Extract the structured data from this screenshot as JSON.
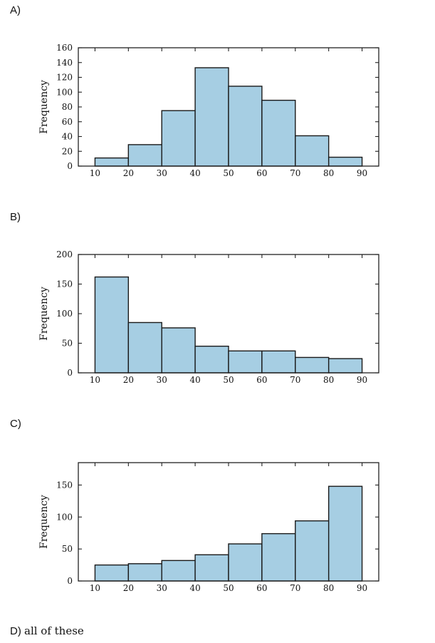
{
  "options": [
    {
      "label": "A)"
    },
    {
      "label": "B)"
    },
    {
      "label": "C)"
    },
    {
      "label": "D)",
      "text": "all of these"
    }
  ],
  "chart_data": [
    {
      "type": "bar",
      "categories": [
        "10-20",
        "20-30",
        "30-40",
        "40-50",
        "50-60",
        "60-70",
        "70-80",
        "80-90"
      ],
      "bin_edges": [
        10,
        20,
        30,
        40,
        50,
        60,
        70,
        80,
        90
      ],
      "values": [
        11,
        29,
        75,
        133,
        108,
        89,
        41,
        12
      ],
      "ylabel": "Frequency",
      "xlabel": "",
      "xlim": [
        5,
        95
      ],
      "ylim": [
        0,
        160
      ],
      "xticks": [
        10,
        20,
        30,
        40,
        50,
        60,
        70,
        80,
        90
      ],
      "yticks": [
        0,
        20,
        40,
        60,
        80,
        100,
        120,
        140,
        160
      ]
    },
    {
      "type": "bar",
      "categories": [
        "10-20",
        "20-30",
        "30-40",
        "40-50",
        "50-60",
        "60-70",
        "70-80",
        "80-90"
      ],
      "bin_edges": [
        10,
        20,
        30,
        40,
        50,
        60,
        70,
        80,
        90
      ],
      "values": [
        162,
        85,
        76,
        45,
        37,
        37,
        26,
        24
      ],
      "ylabel": "Frequency",
      "xlabel": "",
      "xlim": [
        5,
        95
      ],
      "ylim": [
        0,
        200
      ],
      "xticks": [
        10,
        20,
        30,
        40,
        50,
        60,
        70,
        80,
        90
      ],
      "yticks": [
        0,
        50,
        100,
        150,
        200
      ]
    },
    {
      "type": "bar",
      "categories": [
        "10-20",
        "20-30",
        "30-40",
        "40-50",
        "50-60",
        "60-70",
        "70-80",
        "80-90"
      ],
      "bin_edges": [
        10,
        20,
        30,
        40,
        50,
        60,
        70,
        80,
        90
      ],
      "values": [
        25,
        27,
        32,
        41,
        58,
        74,
        94,
        148
      ],
      "ylabel": "Frequency",
      "xlabel": "",
      "xlim": [
        5,
        95
      ],
      "ylim": [
        0,
        185
      ],
      "xticks": [
        10,
        20,
        30,
        40,
        50,
        60,
        70,
        80,
        90
      ],
      "yticks": [
        0,
        50,
        100,
        150
      ]
    }
  ]
}
